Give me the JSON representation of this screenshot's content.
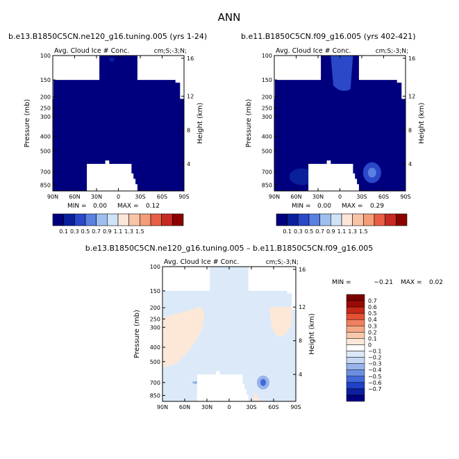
{
  "page_title": "ANN",
  "colors": {
    "top_scale": [
      "#00007f",
      "#0a1f9a",
      "#2a48c8",
      "#5a80e0",
      "#9fbef0",
      "#d0e2f8",
      "#fce6d8",
      "#f8c4a8",
      "#f59c78",
      "#e85f46",
      "#c62a20",
      "#8c0000"
    ],
    "diff_scale": [
      "#00007f",
      "#0c1fa0",
      "#2140c8",
      "#4167d8",
      "#6a8ee0",
      "#97b3ea",
      "#c4d8f4",
      "#dce9f8",
      "#ffffff",
      "#fde8d8",
      "#f8c8ac",
      "#f5a884",
      "#ef8060",
      "#e55035",
      "#c62818",
      "#9c0a06",
      "#7a0000"
    ],
    "mask": "#ffffff"
  },
  "chart_data": [
    {
      "type": "heatmap",
      "title": "b.e13.B1850C5CN.ne120_g16.tuning.005 (yrs 1-24)",
      "subtitle_left": "Avg. Cloud Ice # Conc.",
      "subtitle_right": "cm;S;-3;N;",
      "ylabel": "Pressure (mb)",
      "ylabel_right": "Height (km)",
      "xticks": [
        "90N",
        "60N",
        "30N",
        "0",
        "30S",
        "60S",
        "90S"
      ],
      "yticks": [
        "100",
        "150",
        "200",
        "250",
        "300",
        "400",
        "500",
        "700",
        "850"
      ],
      "yticks_right": [
        "16",
        "12",
        "8",
        "4"
      ],
      "min_label": "MIN =",
      "min": "0.00",
      "max_label": "MAX =",
      "max": "0.12",
      "dominant_level": "0.1"
    },
    {
      "type": "heatmap",
      "title": "b.e11.B1850C5CN.f09_g16.005 (yrs 402-421)",
      "subtitle_left": "Avg. Cloud Ice # Conc.",
      "subtitle_right": "cm;S;-3;N;",
      "ylabel": "Pressure (mb)",
      "ylabel_right": "Height (km)",
      "xticks": [
        "90N",
        "60N",
        "30N",
        "0",
        "30S",
        "60S",
        "90S"
      ],
      "yticks": [
        "100",
        "150",
        "200",
        "250",
        "300",
        "400",
        "500",
        "700",
        "850"
      ],
      "yticks_right": [
        "16",
        "12",
        "8",
        "4"
      ],
      "min_label": "MIN =",
      "min": "0.00",
      "max_label": "MAX =",
      "max": "0.29",
      "dominant_level": "0.1"
    },
    {
      "type": "heatmap",
      "title": "b.e13.B1850C5CN.ne120_g16.tuning.005 – b.e11.B1850C5CN.f09_g16.005",
      "subtitle_left": "Avg. Cloud Ice # Conc.",
      "subtitle_right": "cm;S;-3;N;",
      "ylabel": "Pressure (mb)",
      "ylabel_right": "Height (km)",
      "xticks": [
        "90N",
        "60N",
        "30N",
        "0",
        "30S",
        "60S",
        "90S"
      ],
      "yticks": [
        "100",
        "150",
        "200",
        "250",
        "300",
        "400",
        "500",
        "700",
        "850"
      ],
      "yticks_right": [
        "16",
        "12",
        "8",
        "4"
      ],
      "min_label": "MIN =",
      "min": "−0.21",
      "max_label": "MAX =",
      "max": "0.02",
      "dominant_level": "0"
    }
  ],
  "colorbar_top": {
    "labels": [
      "0.1",
      "0.3",
      "0.5",
      "0.7",
      "0.9",
      "1.1",
      "1.3",
      "1.5"
    ]
  },
  "colorbar_diff": {
    "labels": [
      "0.7",
      "0.6",
      "0.5",
      "0.4",
      "0.3",
      "0.2",
      "0.1",
      "0",
      "−0.1",
      "−0.2",
      "−0.3",
      "−0.4",
      "−0.5",
      "−0.6",
      "−0.7"
    ]
  }
}
